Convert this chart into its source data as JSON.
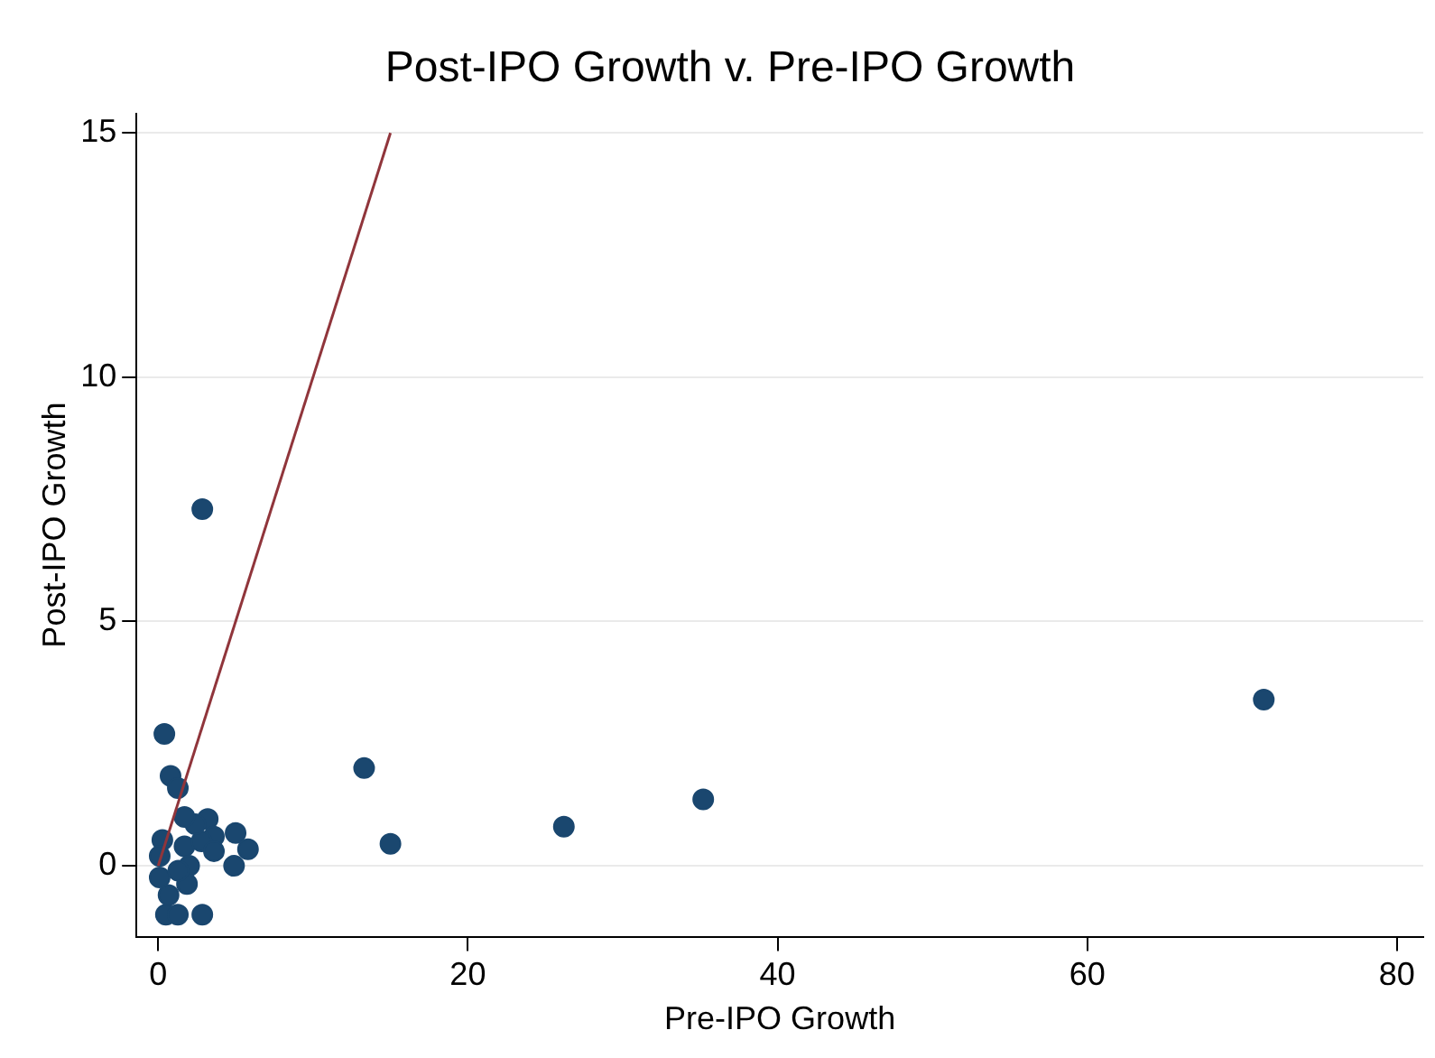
{
  "chart_data": {
    "type": "scatter",
    "title": "Post-IPO Growth v. Pre-IPO Growth",
    "xlabel": "Pre-IPO Growth",
    "ylabel": "Post-IPO Growth",
    "xlim": [
      -1.4,
      81.7
    ],
    "xticks": [
      0,
      20,
      40,
      60,
      80
    ],
    "ylim": [
      -1.45,
      15.4
    ],
    "yticks": [
      0,
      5,
      10,
      15
    ],
    "grid": "y",
    "legend": false,
    "marker": "circle",
    "series": [
      {
        "type": "scatter",
        "color": "#1a476f",
        "x": [
          2.85,
          0.4,
          13.3,
          15.0,
          26.2,
          35.2,
          71.4,
          0.8,
          1.27,
          2.85,
          0.5,
          1.27,
          0.67,
          5.0,
          5.8,
          4.9,
          1.86,
          3.2,
          0.27,
          0.1,
          0.1,
          1.7,
          3.6,
          2.8,
          2.0,
          1.3,
          2.4,
          1.7,
          3.6
        ],
        "values": [
          7.3,
          2.7,
          2.0,
          0.45,
          0.8,
          1.36,
          3.4,
          1.84,
          1.59,
          -1.0,
          -1.0,
          -1.0,
          -0.6,
          0.67,
          0.34,
          0.0,
          -0.37,
          0.96,
          0.53,
          0.2,
          -0.24,
          0.4,
          0.6,
          0.5,
          0.0,
          -0.1,
          0.85,
          1.0,
          0.3
        ]
      },
      {
        "type": "line",
        "color": "#90353b",
        "marker": "none",
        "x": [
          0,
          15
        ],
        "values": [
          0,
          15
        ]
      }
    ]
  }
}
